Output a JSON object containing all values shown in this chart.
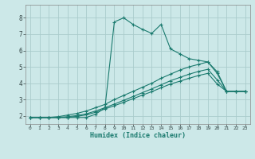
{
  "title": "",
  "xlabel": "Humidex (Indice chaleur)",
  "xlim": [
    -0.5,
    23.5
  ],
  "ylim": [
    1.5,
    8.8
  ],
  "xticks": [
    0,
    1,
    2,
    3,
    4,
    5,
    6,
    7,
    8,
    9,
    10,
    11,
    12,
    13,
    14,
    15,
    16,
    17,
    18,
    19,
    20,
    21,
    22,
    23
  ],
  "yticks": [
    2,
    3,
    4,
    5,
    6,
    7,
    8
  ],
  "background_color": "#cce8e8",
  "grid_color": "#aacccc",
  "line_color": "#1a7a6e",
  "lines": [
    {
      "x": [
        0,
        1,
        2,
        3,
        4,
        5,
        6,
        7,
        8,
        9,
        10,
        11,
        12,
        13,
        14,
        15,
        16,
        17,
        18,
        19,
        20,
        21,
        22,
        23
      ],
      "y": [
        1.9,
        1.9,
        1.9,
        1.9,
        1.9,
        1.9,
        1.9,
        2.1,
        2.5,
        7.75,
        8.0,
        7.6,
        7.3,
        7.05,
        7.6,
        6.1,
        5.8,
        5.5,
        5.4,
        5.3,
        4.7,
        3.5,
        3.5,
        3.5
      ]
    },
    {
      "x": [
        0,
        1,
        2,
        3,
        4,
        5,
        6,
        7,
        8,
        9,
        10,
        11,
        12,
        13,
        14,
        15,
        16,
        17,
        18,
        19,
        20,
        21,
        22,
        23
      ],
      "y": [
        1.9,
        1.9,
        1.9,
        1.95,
        2.05,
        2.15,
        2.3,
        2.5,
        2.7,
        3.0,
        3.25,
        3.5,
        3.75,
        4.0,
        4.3,
        4.55,
        4.8,
        5.0,
        5.15,
        5.3,
        4.6,
        3.5,
        3.5,
        3.5
      ]
    },
    {
      "x": [
        0,
        1,
        2,
        3,
        4,
        5,
        6,
        7,
        8,
        9,
        10,
        11,
        12,
        13,
        14,
        15,
        16,
        17,
        18,
        19,
        20,
        21,
        22,
        23
      ],
      "y": [
        1.9,
        1.9,
        1.9,
        1.9,
        1.95,
        2.02,
        2.12,
        2.3,
        2.5,
        2.72,
        2.95,
        3.18,
        3.42,
        3.65,
        3.9,
        4.15,
        4.35,
        4.55,
        4.72,
        4.85,
        4.2,
        3.5,
        3.5,
        3.5
      ]
    },
    {
      "x": [
        0,
        1,
        2,
        3,
        4,
        5,
        6,
        7,
        8,
        9,
        10,
        11,
        12,
        13,
        14,
        15,
        16,
        17,
        18,
        19,
        20,
        21,
        22,
        23
      ],
      "y": [
        1.9,
        1.9,
        1.9,
        1.9,
        1.9,
        1.97,
        2.06,
        2.22,
        2.42,
        2.62,
        2.83,
        3.05,
        3.27,
        3.48,
        3.72,
        3.95,
        4.12,
        4.3,
        4.47,
        4.6,
        3.95,
        3.5,
        3.5,
        3.5
      ]
    }
  ]
}
